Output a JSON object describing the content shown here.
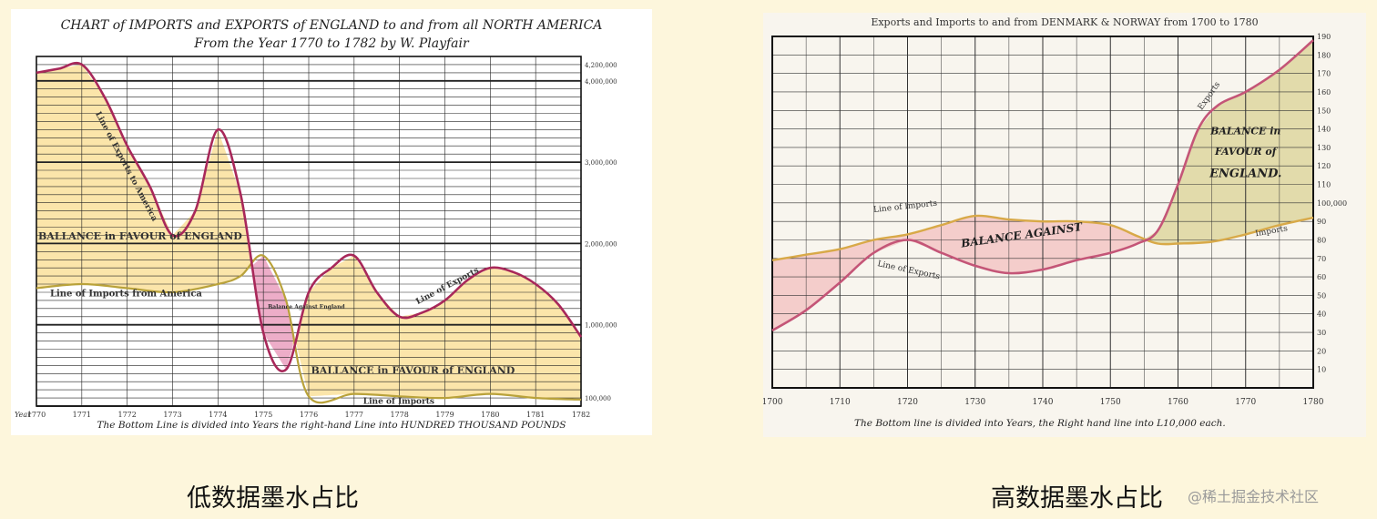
{
  "captions": {
    "left": "低数据墨水占比",
    "right": "高数据墨水占比"
  },
  "watermark": "@稀土掘金技术社区",
  "chart_data": [
    {
      "type": "line",
      "title": "CHART of IMPORTS and EXPORTS of ENGLAND to and from all NORTH AMERICA",
      "subtitle": "From the Year 1770 to 1782 by W. Playfair",
      "footer": "The Bottom Line is divided into Years the right-hand Line into HUNDRED THOUSAND POUNDS",
      "x_prefix": "Year",
      "x": [
        1770,
        1771,
        1772,
        1773,
        1774,
        1775,
        1776,
        1777,
        1778,
        1779,
        1780,
        1781,
        1782
      ],
      "xlim": [
        1770,
        1782
      ],
      "ylim": [
        0,
        4.3
      ],
      "y_ticks": [
        {
          "v": 0.1,
          "t": "100,000"
        },
        {
          "v": 1,
          "t": "1,000,000"
        },
        {
          "v": 2,
          "t": "2,000,000"
        },
        {
          "v": 3,
          "t": "3,000,000"
        },
        {
          "v": 4,
          "t": "4,000,000"
        },
        {
          "v": 4.2,
          "t": "4,200,000"
        }
      ],
      "grid": true,
      "series": [
        {
          "name": "Line of Exports to America",
          "x": [
            1770,
            1770.5,
            1771,
            1771.5,
            1772,
            1772.5,
            1773,
            1773.5,
            1774,
            1774.5,
            1775,
            1775.5,
            1776,
            1776.5,
            1777,
            1777.5,
            1778,
            1778.5,
            1779,
            1779.5,
            1780,
            1780.5,
            1781,
            1781.5,
            1782
          ],
          "y": [
            4.1,
            4.15,
            4.2,
            3.8,
            3.2,
            2.7,
            2.1,
            2.4,
            3.4,
            2.6,
            0.9,
            0.45,
            1.4,
            1.7,
            1.85,
            1.4,
            1.1,
            1.15,
            1.3,
            1.55,
            1.7,
            1.65,
            1.5,
            1.25,
            0.85
          ]
        },
        {
          "name": "Line of Imports from America",
          "x": [
            1770,
            1771,
            1772,
            1773,
            1774,
            1774.5,
            1775,
            1775.5,
            1776,
            1777,
            1778,
            1779,
            1780,
            1781,
            1782
          ],
          "y": [
            1.45,
            1.5,
            1.45,
            1.4,
            1.5,
            1.6,
            1.85,
            1.3,
            0.12,
            0.15,
            0.12,
            0.1,
            0.15,
            0.1,
            0.08
          ]
        }
      ],
      "annotations": [
        "BALLANCE in FAVOUR of ENGLAND",
        "Line of Imports from America",
        "Balance Against England",
        "BALLANCE in FAVOUR of ENGLAND",
        "Line of Exports",
        "Line of Imports",
        "Line of Exports to America"
      ]
    },
    {
      "type": "line",
      "title": "Exports and Imports to and from DENMARK & NORWAY from 1700 to 1780",
      "footer": "The Bottom line is divided into Years, the Right hand line into L10,000 each.",
      "x_ticks": [
        1700,
        1710,
        1720,
        1730,
        1740,
        1750,
        1760,
        1770,
        1780
      ],
      "xlim": [
        1700,
        1780
      ],
      "ylim": [
        0,
        190
      ],
      "y_ticks": [
        10,
        20,
        30,
        40,
        50,
        60,
        70,
        80,
        90,
        100,
        110,
        120,
        130,
        140,
        150,
        160,
        170,
        180,
        190
      ],
      "y_tick_special": {
        "100": "100,000"
      },
      "grid": true,
      "series": [
        {
          "name": "Exports",
          "x": [
            1700,
            1705,
            1710,
            1715,
            1720,
            1725,
            1730,
            1735,
            1740,
            1745,
            1750,
            1754,
            1757,
            1760,
            1763,
            1766,
            1770,
            1775,
            1780
          ],
          "y": [
            31,
            42,
            57,
            73,
            80,
            73,
            66,
            62,
            64,
            69,
            73,
            78,
            85,
            110,
            140,
            153,
            160,
            172,
            188
          ]
        },
        {
          "name": "Imports",
          "x": [
            1700,
            1705,
            1710,
            1715,
            1720,
            1725,
            1730,
            1735,
            1740,
            1745,
            1750,
            1754,
            1757,
            1760,
            1765,
            1770,
            1775,
            1780
          ],
          "y": [
            69,
            72,
            75,
            80,
            83,
            88,
            93,
            91,
            90,
            90,
            88,
            82,
            78,
            78,
            79,
            83,
            88,
            92
          ]
        }
      ],
      "annotations": [
        "Line of Imports",
        "Line of Exports",
        "BALANCE AGAINST",
        "BALANCE in FAVOUR of ENGLAND.",
        "Exports",
        "Imports"
      ]
    }
  ]
}
